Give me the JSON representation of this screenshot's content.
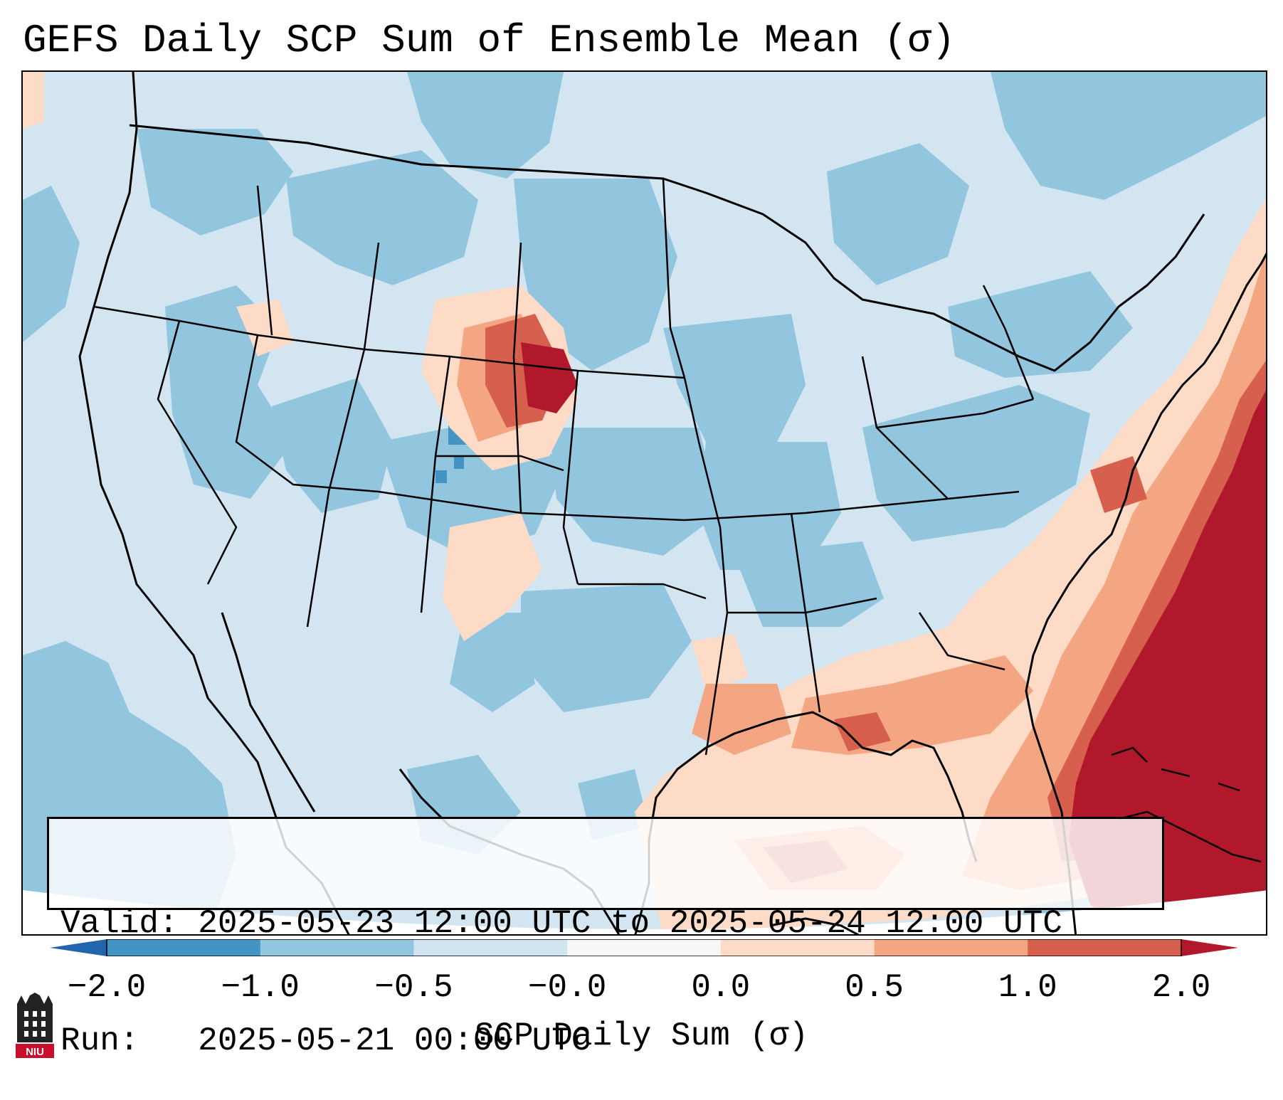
{
  "title": "GEFS Daily SCP Sum of Ensemble Mean (σ)",
  "info": {
    "valid": "Valid: 2025-05-23 12:00 UTC to 2025-05-24 12:00 UTC",
    "run": "Run:   2025-05-21 00:00 UTC"
  },
  "colorbar": {
    "label": "SCP Daily Sum (σ)",
    "ticks": [
      "−2.0",
      "−1.0",
      "−0.5",
      "−0.0",
      "0.0",
      "0.5",
      "1.0",
      "2.0"
    ],
    "colors": [
      "#4393c3",
      "#92c5de",
      "#d1e5f0",
      "#f7f7f7",
      "#fddbc7",
      "#f4a582",
      "#d6604d",
      "#b2182b"
    ],
    "extend_low": "#2166ac",
    "extend_high": "#b2182b"
  },
  "logo": {
    "text": "NIU"
  },
  "palette": {
    "background": "#d3e5f1",
    "medium_blue": "#92c5de",
    "dark_blue": "#4393c3",
    "light_red": "#fddbc7",
    "medium_red": "#f4a582",
    "red": "#d6604d",
    "dark_red": "#b2182b"
  }
}
